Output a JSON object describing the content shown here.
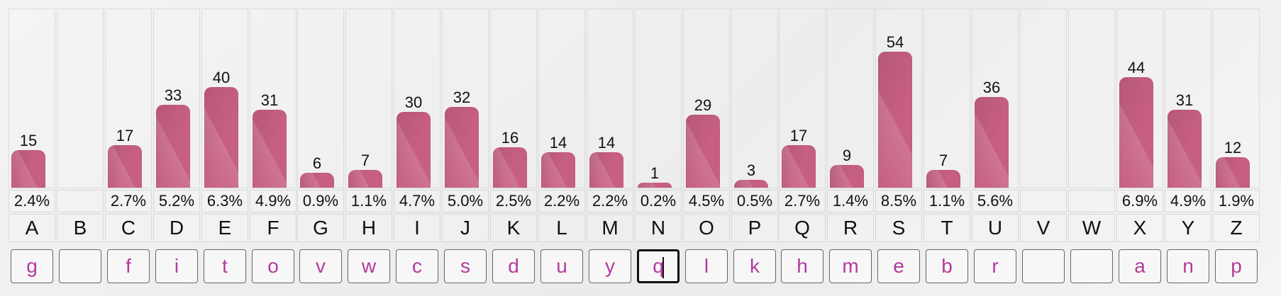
{
  "chart_data": {
    "type": "bar",
    "categories": [
      "A",
      "B",
      "C",
      "D",
      "E",
      "F",
      "G",
      "H",
      "I",
      "J",
      "K",
      "L",
      "M",
      "N",
      "O",
      "P",
      "Q",
      "R",
      "S",
      "T",
      "U",
      "V",
      "W",
      "X",
      "Y",
      "Z"
    ],
    "values": [
      15,
      null,
      17,
      33,
      40,
      31,
      6,
      7,
      30,
      32,
      16,
      14,
      14,
      1,
      29,
      3,
      17,
      9,
      54,
      7,
      36,
      null,
      null,
      44,
      31,
      12
    ],
    "ylim": [
      0,
      54
    ],
    "grid": true
  },
  "ui": {
    "bar_color": "#c65f80",
    "input_text_color": "#b33a9e"
  },
  "columns": [
    {
      "letter": "A",
      "count": "15",
      "percent": "2.4%",
      "guess": "g",
      "count_value": 15
    },
    {
      "letter": "B",
      "count": "",
      "percent": "",
      "guess": "",
      "count_value": 0
    },
    {
      "letter": "C",
      "count": "17",
      "percent": "2.7%",
      "guess": "f",
      "count_value": 17
    },
    {
      "letter": "D",
      "count": "33",
      "percent": "5.2%",
      "guess": "i",
      "count_value": 33
    },
    {
      "letter": "E",
      "count": "40",
      "percent": "6.3%",
      "guess": "t",
      "count_value": 40
    },
    {
      "letter": "F",
      "count": "31",
      "percent": "4.9%",
      "guess": "o",
      "count_value": 31
    },
    {
      "letter": "G",
      "count": "6",
      "percent": "0.9%",
      "guess": "v",
      "count_value": 6
    },
    {
      "letter": "H",
      "count": "7",
      "percent": "1.1%",
      "guess": "w",
      "count_value": 7
    },
    {
      "letter": "I",
      "count": "30",
      "percent": "4.7%",
      "guess": "c",
      "count_value": 30
    },
    {
      "letter": "J",
      "count": "32",
      "percent": "5.0%",
      "guess": "s",
      "count_value": 32
    },
    {
      "letter": "K",
      "count": "16",
      "percent": "2.5%",
      "guess": "d",
      "count_value": 16
    },
    {
      "letter": "L",
      "count": "14",
      "percent": "2.2%",
      "guess": "u",
      "count_value": 14
    },
    {
      "letter": "M",
      "count": "14",
      "percent": "2.2%",
      "guess": "y",
      "count_value": 14
    },
    {
      "letter": "N",
      "count": "1",
      "percent": "0.2%",
      "guess": "q",
      "count_value": 1,
      "active": true
    },
    {
      "letter": "O",
      "count": "29",
      "percent": "4.5%",
      "guess": "l",
      "count_value": 29
    },
    {
      "letter": "P",
      "count": "3",
      "percent": "0.5%",
      "guess": "k",
      "count_value": 3
    },
    {
      "letter": "Q",
      "count": "17",
      "percent": "2.7%",
      "guess": "h",
      "count_value": 17
    },
    {
      "letter": "R",
      "count": "9",
      "percent": "1.4%",
      "guess": "m",
      "count_value": 9
    },
    {
      "letter": "S",
      "count": "54",
      "percent": "8.5%",
      "guess": "e",
      "count_value": 54
    },
    {
      "letter": "T",
      "count": "7",
      "percent": "1.1%",
      "guess": "b",
      "count_value": 7
    },
    {
      "letter": "U",
      "count": "36",
      "percent": "5.6%",
      "guess": "r",
      "count_value": 36
    },
    {
      "letter": "V",
      "count": "",
      "percent": "",
      "guess": "",
      "count_value": 0
    },
    {
      "letter": "W",
      "count": "",
      "percent": "",
      "guess": "",
      "count_value": 0
    },
    {
      "letter": "X",
      "count": "44",
      "percent": "6.9%",
      "guess": "a",
      "count_value": 44
    },
    {
      "letter": "Y",
      "count": "31",
      "percent": "4.9%",
      "guess": "n",
      "count_value": 31
    },
    {
      "letter": "Z",
      "count": "12",
      "percent": "1.9%",
      "guess": "p",
      "count_value": 12
    }
  ]
}
